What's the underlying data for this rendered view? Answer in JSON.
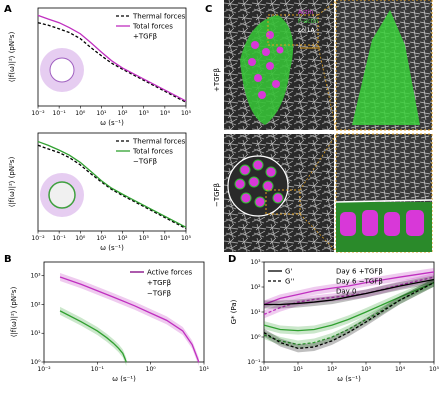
{
  "panels": {
    "A": "A",
    "B": "B",
    "C": "C",
    "D": "D"
  },
  "panelC": {
    "top_label": "+TGFβ",
    "bottom_label": "−TGFβ",
    "legend": [
      "Actin",
      "F-actin",
      "col1A"
    ],
    "colors": {
      "actin": "#e040e0",
      "factin": "#40d040",
      "col": "#ffffff",
      "box": "#e0a020"
    }
  },
  "chart_data": [
    {
      "id": "A-top",
      "type": "line",
      "xlabel": "ω (s⁻¹)",
      "ylabel": "⟨|f(ω)|²⟩ (pN²s)",
      "xlog": true,
      "ylog": true,
      "xlim": [
        0.01,
        100000
      ],
      "ylim_exp": [
        -9,
        -1
      ],
      "xticks": [
        "10⁻²",
        "10⁻¹",
        "10⁰",
        "10¹",
        "10²",
        "10³",
        "10⁴",
        "10⁵"
      ],
      "legend": [
        "Thermal forces",
        "Total forces",
        "+TGFβ"
      ],
      "series": [
        {
          "name": "Thermal forces",
          "style": "dashed",
          "color": "#000000",
          "x": [
            0.01,
            0.03,
            0.1,
            0.3,
            1,
            3,
            10,
            30,
            100,
            1000,
            10000,
            100000
          ],
          "y_exp": [
            -2.2,
            -2.4,
            -2.7,
            -3.0,
            -3.5,
            -4.2,
            -4.9,
            -5.5,
            -6.0,
            -6.9,
            -7.8,
            -8.7
          ]
        },
        {
          "name": "Total forces",
          "style": "solid",
          "color": "#c030c0",
          "x": [
            0.01,
            0.03,
            0.1,
            0.3,
            1,
            3,
            10,
            30,
            100,
            1000,
            10000,
            100000
          ],
          "y_exp": [
            -1.6,
            -1.9,
            -2.2,
            -2.6,
            -3.1,
            -3.8,
            -4.6,
            -5.3,
            -5.9,
            -6.8,
            -7.7,
            -8.6
          ]
        }
      ]
    },
    {
      "id": "A-bottom",
      "type": "line",
      "xlabel": "ω (s⁻¹)",
      "ylabel": "⟨|f(ω)|²⟩ (pN²s)",
      "xlog": true,
      "ylog": true,
      "xlim": [
        0.01,
        100000
      ],
      "ylim_exp": [
        -9,
        -1
      ],
      "xticks": [
        "10⁻²",
        "10⁻¹",
        "10⁰",
        "10¹",
        "10²",
        "10³",
        "10⁴",
        "10⁵"
      ],
      "legend": [
        "Thermal forces",
        "Total forces",
        "−TGFβ"
      ],
      "series": [
        {
          "name": "Thermal forces",
          "style": "dashed",
          "color": "#000000",
          "x": [
            0.01,
            0.03,
            0.1,
            0.3,
            1,
            3,
            10,
            30,
            100,
            1000,
            10000,
            100000
          ],
          "y_exp": [
            -2.0,
            -2.3,
            -2.6,
            -3.0,
            -3.6,
            -4.3,
            -5.0,
            -5.6,
            -6.1,
            -7.0,
            -7.9,
            -8.8
          ]
        },
        {
          "name": "Total forces",
          "style": "solid",
          "color": "#30a030",
          "x": [
            0.01,
            0.03,
            0.1,
            0.3,
            1,
            3,
            10,
            30,
            100,
            1000,
            10000,
            100000
          ],
          "y_exp": [
            -1.7,
            -2.0,
            -2.4,
            -2.8,
            -3.4,
            -4.1,
            -4.9,
            -5.5,
            -6.0,
            -6.9,
            -7.8,
            -8.7
          ]
        }
      ]
    },
    {
      "id": "B",
      "type": "line",
      "xlabel": "ω (s⁻¹)",
      "ylabel": "⟨|f(ω)|²⟩ (pN²s)",
      "xlog": true,
      "ylog": true,
      "xlim": [
        0.01,
        10
      ],
      "ylim": [
        1,
        3000
      ],
      "xticks": [
        "10⁻²",
        "10⁻¹",
        "10⁰",
        "10¹"
      ],
      "yticks": [
        "10⁰",
        "10¹",
        "10²",
        "10³"
      ],
      "legend": [
        "Active forces",
        "+TGFβ",
        "−TGFβ"
      ],
      "series": [
        {
          "name": "+TGFβ",
          "color": "#c030c0",
          "x": [
            0.02,
            0.05,
            0.1,
            0.2,
            0.5,
            1,
            2,
            4,
            6,
            8
          ],
          "y": [
            900,
            500,
            300,
            180,
            90,
            50,
            28,
            12,
            4,
            1
          ]
        },
        {
          "name": "−TGFβ",
          "color": "#30a030",
          "x": [
            0.02,
            0.05,
            0.1,
            0.15,
            0.2,
            0.25,
            0.3,
            0.35
          ],
          "y": [
            60,
            25,
            12,
            7,
            4.5,
            3,
            2,
            1
          ]
        }
      ]
    },
    {
      "id": "D",
      "type": "line",
      "xlabel": "ω (s⁻¹)",
      "ylabel": "G* (Pa)",
      "xlog": true,
      "ylog": true,
      "xlim": [
        1,
        100000
      ],
      "ylim": [
        0.1,
        1000
      ],
      "xticks": [
        "10⁰",
        "10¹",
        "10²",
        "10³",
        "10⁴",
        "10⁵"
      ],
      "yticks": [
        "10⁻¹",
        "10⁰",
        "10¹",
        "10²",
        "10³"
      ],
      "legend": [
        "G'",
        "G''",
        "Day 6 +TGFβ",
        "Day 6 −TGFβ",
        "Day 0"
      ],
      "series": [
        {
          "name": "Day 6 +TGFβ G'",
          "style": "solid",
          "color": "#c030c0",
          "x": [
            1,
            3,
            10,
            30,
            100,
            300,
            1000,
            10000,
            100000
          ],
          "y": [
            20,
            35,
            50,
            70,
            90,
            110,
            150,
            250,
            400
          ]
        },
        {
          "name": "Day 6 +TGFβ G''",
          "style": "dashed",
          "color": "#c030c0",
          "x": [
            1,
            3,
            10,
            30,
            100,
            300,
            1000,
            10000,
            100000
          ],
          "y": [
            8,
            15,
            25,
            32,
            38,
            45,
            55,
            120,
            250
          ]
        },
        {
          "name": "Day 6 −TGFβ G'",
          "style": "solid",
          "color": "#30a030",
          "x": [
            1,
            3,
            10,
            30,
            100,
            300,
            1000,
            10000,
            100000
          ],
          "y": [
            3,
            2,
            1.8,
            2,
            3,
            5,
            10,
            40,
            150
          ]
        },
        {
          "name": "Day 6 −TGFβ G''",
          "style": "dashed",
          "color": "#30a030",
          "x": [
            1,
            3,
            10,
            30,
            100,
            300,
            1000,
            10000,
            100000
          ],
          "y": [
            1.2,
            0.7,
            0.5,
            0.6,
            1,
            2,
            5,
            30,
            150
          ]
        },
        {
          "name": "Day 0 G'",
          "style": "solid",
          "color": "#000000",
          "x": [
            1,
            3,
            10,
            30,
            100,
            300,
            1000,
            10000,
            100000
          ],
          "y": [
            20,
            20,
            22,
            25,
            30,
            40,
            55,
            110,
            200
          ]
        },
        {
          "name": "Day 0 G''",
          "style": "dashed",
          "color": "#000000",
          "x": [
            1,
            3,
            10,
            30,
            100,
            300,
            1000,
            10000,
            100000
          ],
          "y": [
            1.5,
            0.6,
            0.35,
            0.4,
            0.7,
            1.5,
            4,
            30,
            150
          ]
        }
      ]
    }
  ]
}
